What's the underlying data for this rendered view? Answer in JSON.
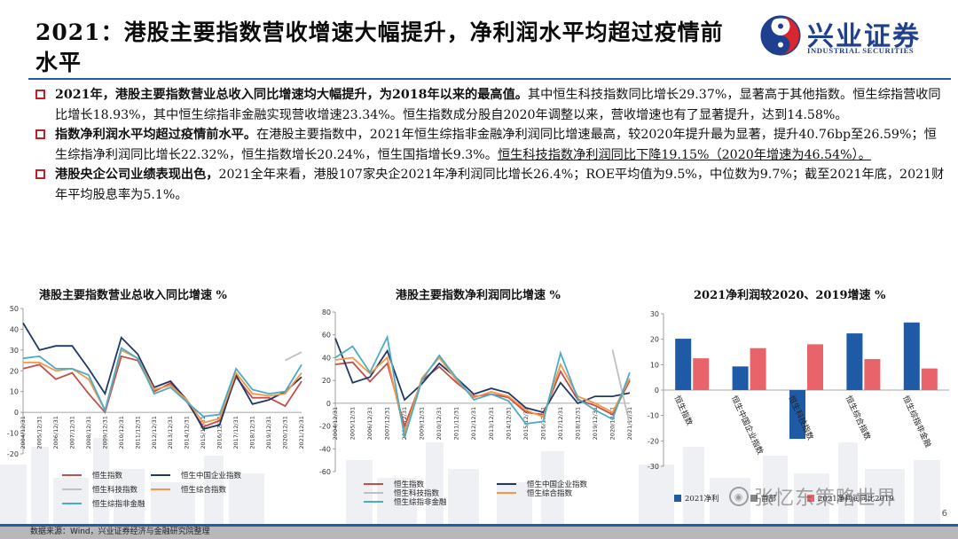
{
  "title": "2021：港股主要指数营收增速大幅提升，净利润水平均超过疫情前水平",
  "logo": {
    "cn": "兴业证券",
    "en": "INDUSTRIAL SECURITIES"
  },
  "bullets": [
    {
      "bold": "2021年，港股主要指数营业总收入同比增速均大幅提升，为2018年以来的最高值。",
      "text": "其中恒生科技指数同比增长29.37%，显著高于其他指数。恒生综指营收同比增长18.93%，其中恒生综指非金融实现营收增速23.34%。恒生指数成分股自2020年调整以来，营收增速也有了显著提升，达到14.58%。",
      "underlined": ""
    },
    {
      "bold": "指数净利润水平均超过疫情前水平。",
      "text": "在港股主要指数中，2021年恒生综指非金融净利润同比增速最高，较2020年提升最为显著，提升40.76bp至26.59%；恒生综指净利润同比增长22.32%，恒生指数增长20.24%，恒生国指增长9.3%。",
      "underlined": "恒生科技指数净利润同比下降19.15%（2020年增速为46.54%）。"
    },
    {
      "bold": "港股央企公司业绩表现出色，",
      "text": "2021全年来看，港股107家央企2021年净利润同比增长26.4%；ROE平均值为9.5%，中位数为9.7%；截至2021年底，2021财年平均股息率为5.1%。",
      "underlined": ""
    }
  ],
  "chart_data": [
    {
      "type": "line",
      "title": "港股主要指数营业总收入同比增速 %",
      "x": [
        "2004/12/31",
        "2005/12/31",
        "2006/12/31",
        "2007/12/31",
        "2008/12/31",
        "2009/12/31",
        "2010/12/31",
        "2011/12/31",
        "2012/12/31",
        "2013/12/31",
        "2014/12/31",
        "2015/12/31",
        "2016/12/31",
        "2017/12/31",
        "2018/12/31",
        "2019/12/31",
        "2020/12/31",
        "2021/12/31"
      ],
      "ylim": [
        -20,
        50
      ],
      "yticks": [
        -20,
        -10,
        0,
        10,
        20,
        30,
        40,
        50
      ],
      "series": [
        {
          "name": "恒生指数",
          "color": "#c0504d",
          "values": [
            21,
            23,
            16,
            19,
            9,
            0,
            27,
            25,
            10,
            14,
            5,
            -7,
            -4,
            17,
            7,
            7,
            3,
            15
          ]
        },
        {
          "name": "恒生中国企业指数",
          "color": "#1f3864",
          "values": [
            43,
            30,
            32,
            32,
            21,
            9,
            36,
            28,
            12,
            15,
            6,
            -8,
            -6,
            18,
            4,
            6,
            10,
            17
          ]
        },
        {
          "name": "恒生科技指数",
          "color": "#bfbfbf",
          "values": [
            null,
            null,
            null,
            null,
            null,
            null,
            null,
            null,
            null,
            null,
            null,
            null,
            null,
            null,
            null,
            null,
            25,
            29
          ]
        },
        {
          "name": "恒生综合指数",
          "color": "#f79646",
          "values": [
            24,
            24,
            20,
            21,
            16,
            1,
            30,
            26,
            11,
            13,
            6,
            -5,
            -3,
            19,
            9,
            8,
            9,
            19
          ]
        },
        {
          "name": "恒生综指非金融",
          "color": "#4bacc6",
          "values": [
            26,
            27,
            21,
            21,
            18,
            1,
            31,
            26,
            9,
            12,
            5,
            -2,
            -1,
            21,
            11,
            9,
            10,
            23
          ]
        }
      ]
    },
    {
      "type": "line",
      "title": "港股主要指数净利润同比增速 %",
      "x": [
        "2004/12/31",
        "2005/12/31",
        "2006/12/31",
        "2007/12/31",
        "2008/12/31",
        "2009/12/31",
        "2010/12/31",
        "2011/12/31",
        "2012/12/31",
        "2013/12/31",
        "2014/12/31",
        "2015/12/31",
        "2016/12/31",
        "2017/12/31",
        "2018/12/31",
        "2019/12/31",
        "2020/12/31",
        "2021/12/31"
      ],
      "ylim": [
        -60,
        80
      ],
      "yticks": [
        -60,
        -40,
        -20,
        0,
        20,
        40,
        60,
        80
      ],
      "series": [
        {
          "name": "恒生指数",
          "color": "#c0504d",
          "values": [
            34,
            36,
            19,
            35,
            -20,
            20,
            32,
            18,
            6,
            8,
            5,
            -8,
            -10,
            28,
            3,
            -2,
            -10,
            20
          ]
        },
        {
          "name": "恒生中国企业指数",
          "color": "#1f3864",
          "values": [
            57,
            18,
            23,
            46,
            3,
            17,
            35,
            22,
            8,
            13,
            9,
            -4,
            -8,
            18,
            0,
            6,
            6,
            9
          ]
        },
        {
          "name": "恒生科技指数",
          "color": "#bfbfbf",
          "values": [
            null,
            null,
            null,
            null,
            null,
            null,
            null,
            null,
            null,
            null,
            null,
            null,
            null,
            null,
            null,
            null,
            47,
            -19
          ]
        },
        {
          "name": "恒生综合指数",
          "color": "#f79646",
          "values": [
            38,
            40,
            26,
            40,
            -26,
            22,
            40,
            20,
            5,
            10,
            6,
            -6,
            -12,
            34,
            6,
            0,
            -8,
            22
          ]
        },
        {
          "name": "恒生综指非金融",
          "color": "#4bacc6",
          "values": [
            40,
            50,
            27,
            58,
            -30,
            20,
            42,
            22,
            3,
            8,
            2,
            -18,
            -16,
            44,
            4,
            -6,
            -14,
            27
          ]
        }
      ]
    },
    {
      "type": "bar",
      "title": "2021净利润较2020、2019增速 %",
      "categories": [
        "恒生指数",
        "恒生中国企业指数",
        "恒生科技指数",
        "恒生综合指数",
        "恒生综指非金融"
      ],
      "ylim": [
        -30,
        30
      ],
      "yticks": [
        -30,
        -20,
        -10,
        0,
        10,
        20,
        30
      ],
      "series": [
        {
          "name": "2021净利",
          "color": "#1f5aa6",
          "values": [
            20.2,
            9.3,
            -19.2,
            22.3,
            26.6
          ]
        },
        {
          "name": "",
          "color": "#e8646a",
          "values": [
            12.5,
            16.5,
            18.0,
            12.2,
            8.5
          ]
        }
      ],
      "legend_visible": [
        "2021净利",
        "首部",
        "2021净利润同比2019"
      ]
    }
  ],
  "watermark": "张忆东策略世界",
  "source": "数据来源：Wind，兴业证券经济与金融研究院整理",
  "page_number": "6",
  "colors": {
    "brand_blue": "#1e5ea8",
    "bullet_red": "#c0202a"
  }
}
